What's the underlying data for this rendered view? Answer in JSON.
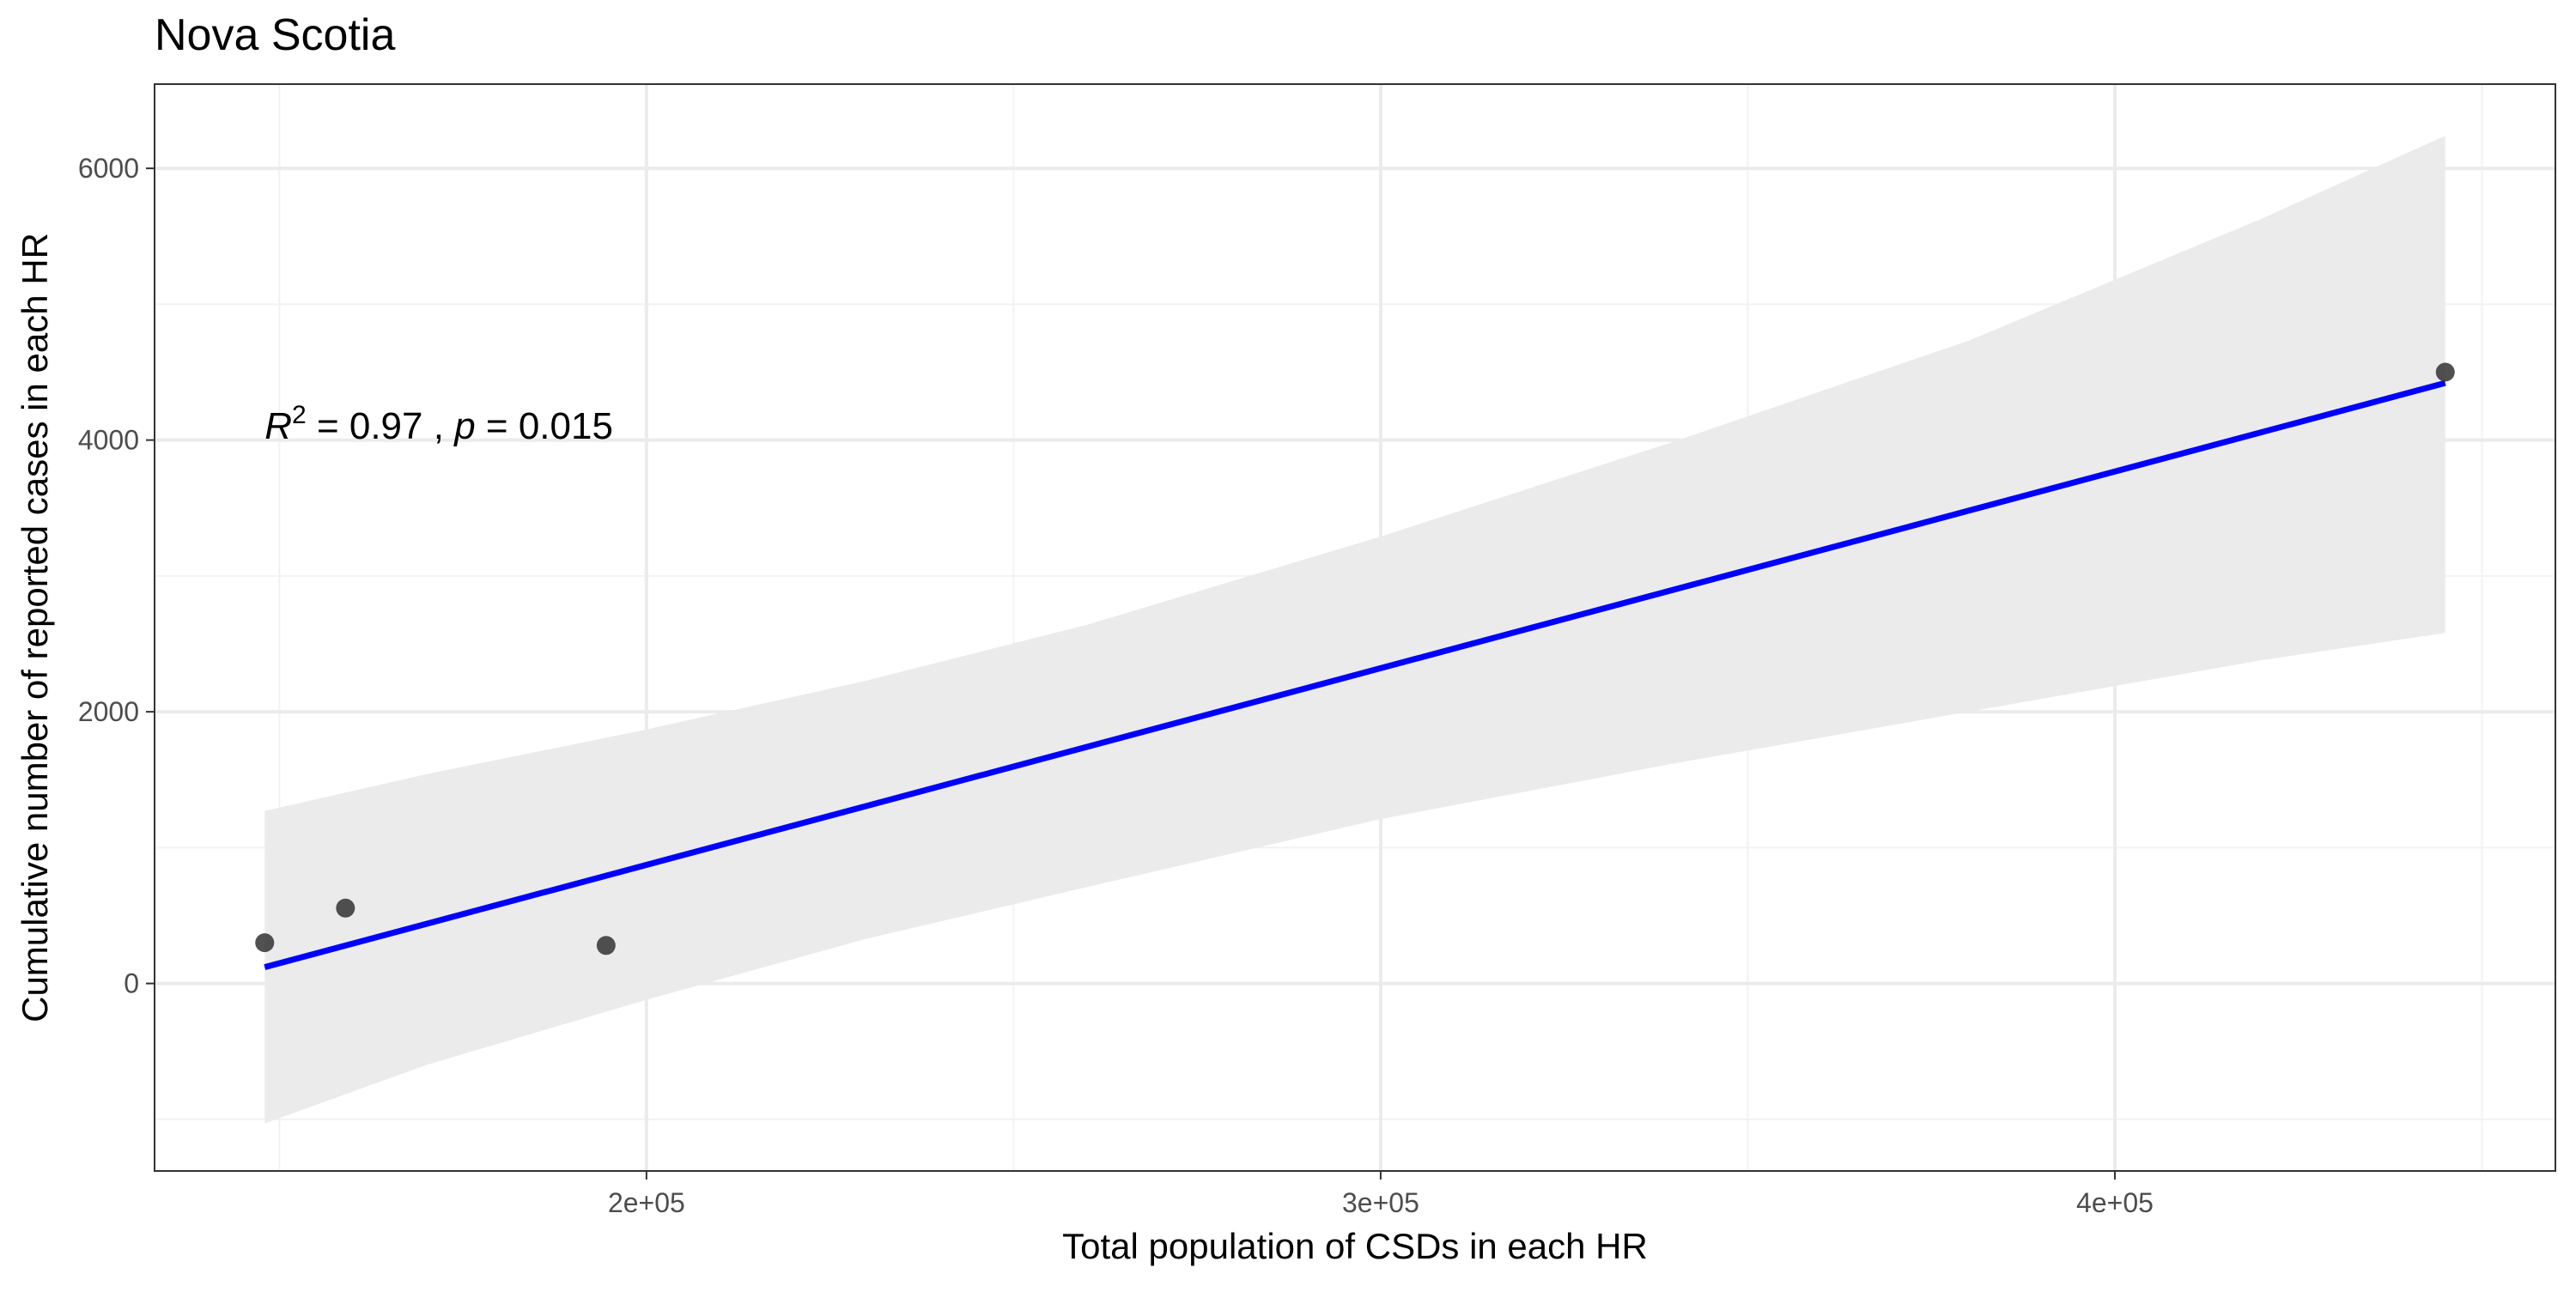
{
  "chart_data": {
    "type": "scatter",
    "title": "Nova Scotia",
    "xlabel": "Total population of CSDs in each HR",
    "ylabel": "Cumulative number of reported cases in each HR",
    "xlim": [
      133000,
      460000
    ],
    "ylim": [
      -1380,
      6620
    ],
    "x_ticks": [
      200000,
      300000,
      400000
    ],
    "x_tick_labels": [
      "2e+05",
      "3e+05",
      "4e+05"
    ],
    "y_ticks": [
      0,
      2000,
      4000,
      6000
    ],
    "y_tick_labels": [
      "0",
      "2000",
      "4000",
      "6000"
    ],
    "grid": true,
    "points": [
      {
        "x": 148000,
        "y": 300
      },
      {
        "x": 159000,
        "y": 555
      },
      {
        "x": 194500,
        "y": 280
      },
      {
        "x": 445000,
        "y": 4500
      }
    ],
    "fit_line": {
      "x": [
        148000,
        445000
      ],
      "y": [
        120,
        4420
      ]
    },
    "confidence_band": {
      "x": [
        148000,
        170000,
        200000,
        230000,
        260000,
        300000,
        340000,
        380000,
        420000,
        445000
      ],
      "upper": [
        1270,
        1540,
        1870,
        2230,
        2640,
        3290,
        3990,
        4730,
        5630,
        6240
      ],
      "lower": [
        -1030,
        -600,
        -120,
        330,
        710,
        1210,
        1620,
        2000,
        2380,
        2580
      ]
    },
    "annotation": {
      "r_symbol": "R",
      "superscript": "2",
      "r_value_text": " = 0.97 , ",
      "p_symbol": "p",
      "p_value_text": " = 0.015",
      "x": 148000,
      "y": 4100
    },
    "colors": {
      "fit_line": "#0000ff",
      "confidence_band": "#ebebeb",
      "point": "#333333",
      "grid_major": "#ebebeb",
      "grid_minor": "#f2f2f2",
      "panel_border": "#333333"
    }
  }
}
